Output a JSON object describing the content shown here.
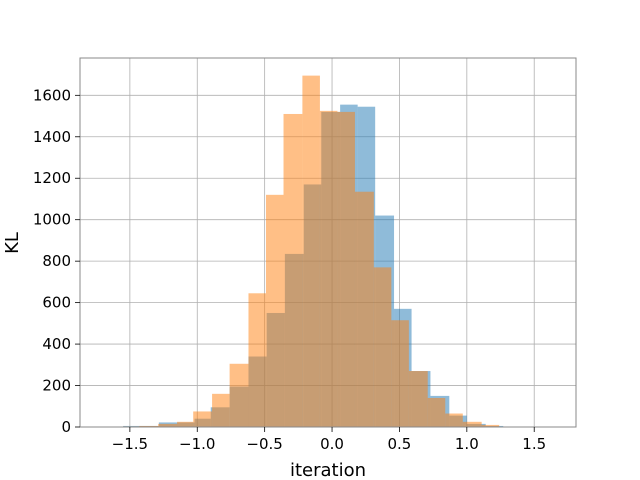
{
  "chart_data": {
    "type": "histogram",
    "xlabel": "iteration",
    "ylabel": "KL",
    "xlim": [
      -1.87,
      1.81
    ],
    "ylim": [
      0,
      1780
    ],
    "x_ticks": [
      -1.5,
      -1.0,
      -0.5,
      0.0,
      0.5,
      1.0,
      1.5
    ],
    "x_tick_labels": [
      "−1.5",
      "−1.0",
      "−0.5",
      "0.0",
      "0.5",
      "1.0",
      "1.5"
    ],
    "y_ticks": [
      0,
      200,
      400,
      600,
      800,
      1000,
      1200,
      1400,
      1600
    ],
    "y_tick_labels": [
      "0",
      "200",
      "400",
      "600",
      "800",
      "1000",
      "1200",
      "1400",
      "1600"
    ],
    "grid": true,
    "legend": "none",
    "series": [
      {
        "color": "#1f77b4",
        "opacity": 0.5,
        "bins": [
          {
            "x0": -1.55,
            "x1": -1.285,
            "count": 5
          },
          {
            "x0": -1.285,
            "x1": -1.02,
            "count": 22
          },
          {
            "x0": -1.02,
            "x1": -0.9,
            "count": 40
          },
          {
            "x0": -0.9,
            "x1": -0.76,
            "count": 95
          },
          {
            "x0": -0.76,
            "x1": -0.62,
            "count": 195
          },
          {
            "x0": -0.62,
            "x1": -0.485,
            "count": 340
          },
          {
            "x0": -0.485,
            "x1": -0.35,
            "count": 550
          },
          {
            "x0": -0.35,
            "x1": -0.21,
            "count": 835
          },
          {
            "x0": -0.21,
            "x1": -0.08,
            "count": 1170
          },
          {
            "x0": -0.08,
            "x1": 0.06,
            "count": 1520
          },
          {
            "x0": 0.06,
            "x1": 0.19,
            "count": 1555
          },
          {
            "x0": 0.19,
            "x1": 0.32,
            "count": 1545
          },
          {
            "x0": 0.32,
            "x1": 0.46,
            "count": 1020
          },
          {
            "x0": 0.46,
            "x1": 0.59,
            "count": 570
          },
          {
            "x0": 0.59,
            "x1": 0.73,
            "count": 270
          },
          {
            "x0": 0.73,
            "x1": 0.87,
            "count": 150
          },
          {
            "x0": 0.87,
            "x1": 1.0,
            "count": 55
          },
          {
            "x0": 1.0,
            "x1": 1.14,
            "count": 15
          },
          {
            "x0": 1.14,
            "x1": 1.27,
            "count": 5
          }
        ]
      },
      {
        "color": "#ff7f0e",
        "opacity": 0.5,
        "bins": [
          {
            "x0": -1.55,
            "x1": -1.43,
            "count": 3
          },
          {
            "x0": -1.43,
            "x1": -1.29,
            "count": 5
          },
          {
            "x0": -1.29,
            "x1": -1.15,
            "count": 15
          },
          {
            "x0": -1.15,
            "x1": -1.03,
            "count": 25
          },
          {
            "x0": -1.03,
            "x1": -0.89,
            "count": 75
          },
          {
            "x0": -0.89,
            "x1": -0.76,
            "count": 160
          },
          {
            "x0": -0.76,
            "x1": -0.62,
            "count": 305
          },
          {
            "x0": -0.62,
            "x1": -0.49,
            "count": 645
          },
          {
            "x0": -0.49,
            "x1": -0.36,
            "count": 1120
          },
          {
            "x0": -0.36,
            "x1": -0.22,
            "count": 1510
          },
          {
            "x0": -0.22,
            "x1": -0.09,
            "count": 1695
          },
          {
            "x0": -0.09,
            "x1": 0.04,
            "count": 1525
          },
          {
            "x0": 0.04,
            "x1": 0.17,
            "count": 1520
          },
          {
            "x0": 0.17,
            "x1": 0.31,
            "count": 1135
          },
          {
            "x0": 0.31,
            "x1": 0.44,
            "count": 770
          },
          {
            "x0": 0.44,
            "x1": 0.57,
            "count": 515
          },
          {
            "x0": 0.57,
            "x1": 0.71,
            "count": 270
          },
          {
            "x0": 0.71,
            "x1": 0.84,
            "count": 140
          },
          {
            "x0": 0.84,
            "x1": 0.97,
            "count": 65
          },
          {
            "x0": 0.97,
            "x1": 1.11,
            "count": 25
          },
          {
            "x0": 1.11,
            "x1": 1.24,
            "count": 10
          }
        ]
      }
    ]
  }
}
